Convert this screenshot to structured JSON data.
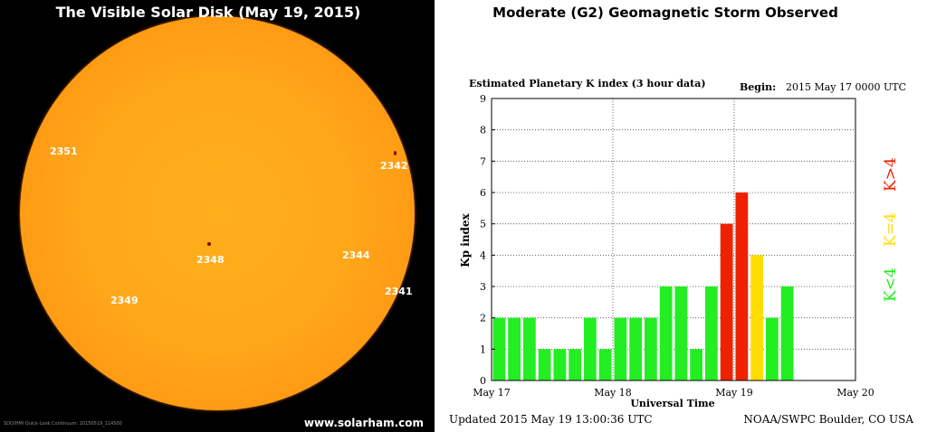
{
  "left_panel": {
    "title": "The Visible Solar Disk (May 19, 2015)",
    "watermark": "www.solarham.com",
    "caption": "SDO/HMI Quick-Look Continuum: 20150519_114500",
    "regions": [
      "2351",
      "2342",
      "2348",
      "2344",
      "2341",
      "2349"
    ]
  },
  "right_panel": {
    "title": "Moderate (G2) Geomagnetic Storm Observed"
  },
  "colors": {
    "green": "#22ee22",
    "yellow": "#ffdd00",
    "red": "#ee2200",
    "sun": "#ffa81a",
    "background": "#000000"
  },
  "chart_data": {
    "type": "bar",
    "title": "Estimated Planetary K index (3 hour data)",
    "begin_label": "Begin:",
    "begin_value": "2015 May 17 0000 UTC",
    "ylabel": "Kp index",
    "xlabel": "Universal Time",
    "ylim": [
      0,
      9
    ],
    "yticks": [
      "0",
      "1",
      "2",
      "3",
      "4",
      "5",
      "6",
      "7",
      "8",
      "9"
    ],
    "xticks": [
      "May 17",
      "May 18",
      "May 19",
      "May 20"
    ],
    "values": [
      2,
      2,
      2,
      1,
      1,
      1,
      2,
      1,
      2,
      2,
      2,
      3,
      3,
      1,
      3,
      5,
      6,
      4,
      2,
      3
    ],
    "bar_colors": [
      "green",
      "green",
      "green",
      "green",
      "green",
      "green",
      "green",
      "green",
      "green",
      "green",
      "green",
      "green",
      "green",
      "green",
      "green",
      "red",
      "red",
      "yellow",
      "green",
      "green"
    ],
    "legend": [
      {
        "label": "K<4",
        "color": "green"
      },
      {
        "label": "K=4",
        "color": "yellow"
      },
      {
        "label": "K>4",
        "color": "red"
      }
    ],
    "legend_placement": "right",
    "grid": true,
    "updated": "Updated 2015 May 19 13:00:36 UTC",
    "source": "NOAA/SWPC Boulder, CO USA"
  }
}
